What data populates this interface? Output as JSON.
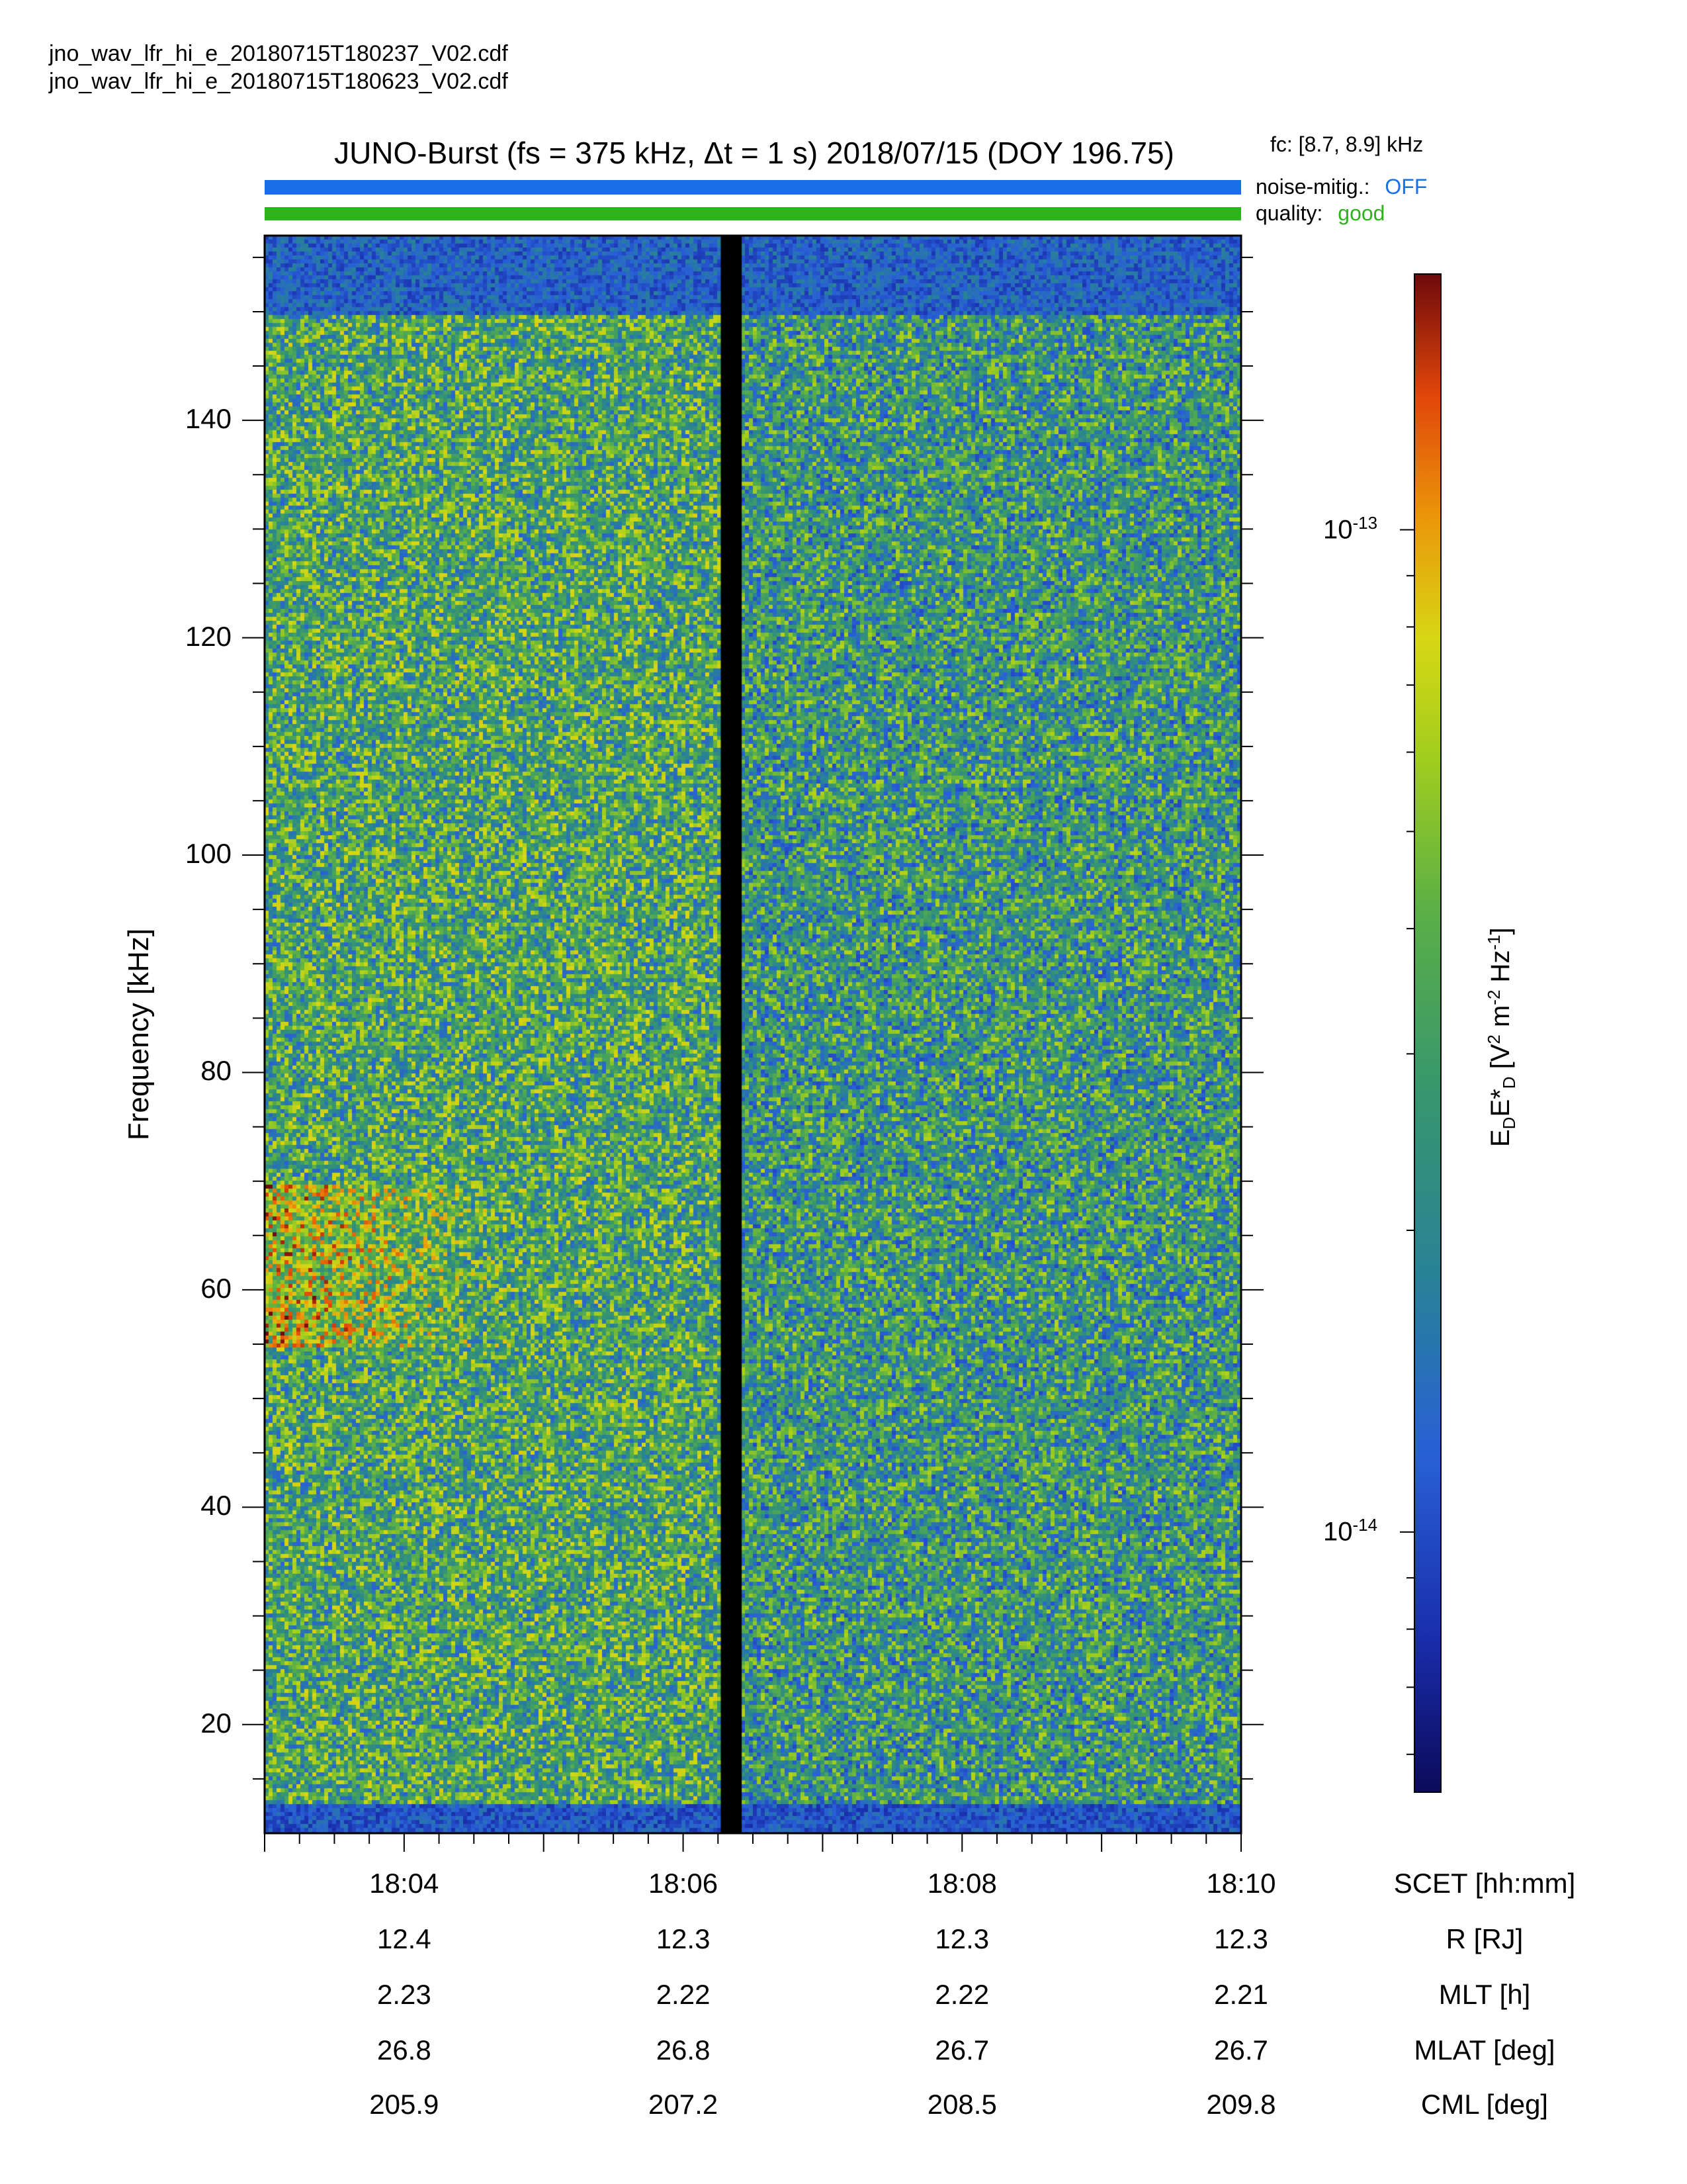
{
  "files": [
    "jno_wav_lfr_hi_e_20180715T180237_V02.cdf",
    "jno_wav_lfr_hi_e_20180715T180623_V02.cdf"
  ],
  "header": {
    "fc_label": "fc: [8.7, 8.9] kHz",
    "noise_label": "noise-mitig.:",
    "noise_value": "OFF",
    "quality_label": "quality:",
    "quality_value": "good"
  },
  "colors": {
    "noise_bar": "#1a6ee8",
    "quality_bar": "#2db31c",
    "noise_value": "#1a6ee8",
    "quality_value": "#2db31c"
  },
  "chart_data": {
    "type": "heatmap",
    "title": "JUNO-Burst (fs = 375 kHz, Δt = 1 s)  2018/07/15 (DOY 196.75)",
    "ylabel": "Frequency [kHz]",
    "ylim": [
      10,
      157
    ],
    "yticks": [
      20,
      40,
      60,
      80,
      100,
      120,
      140
    ],
    "xticks_minutes": [
      4,
      6,
      8,
      10
    ],
    "xlim_minutes": [
      3,
      10
    ],
    "data_gap_minutes": [
      6.27,
      6.42
    ],
    "colorbar": {
      "label": "EDE*D [V2 m-2 Hz-1]",
      "scale": "log",
      "range": [
        5.5e-15,
        1.8e-13
      ],
      "ticks": [
        {
          "value": 1e-13,
          "label": "10-13"
        },
        {
          "value": 1e-14,
          "label": "10-14"
        }
      ]
    },
    "features": [
      {
        "name": "enhanced emission band",
        "freq_range_khz": [
          55,
          70
        ],
        "time_range_minutes": [
          3,
          4.8
        ]
      },
      {
        "name": "low-frequency noise floor",
        "freq_range_khz": [
          10,
          13
        ]
      },
      {
        "name": "high-frequency cutoff",
        "freq_range_khz": [
          150,
          157
        ]
      }
    ],
    "ephemeris": {
      "row_labels": [
        "SCET [hh:mm]",
        "R [RJ]",
        "MLT [h]",
        "MLAT [deg]",
        "CML [deg]"
      ],
      "scet": [
        "18:04",
        "18:06",
        "18:08",
        "18:10"
      ],
      "R": [
        "12.4",
        "12.3",
        "12.3",
        "12.3"
      ],
      "MLT": [
        "2.23",
        "2.22",
        "2.22",
        "2.21"
      ],
      "MLAT": [
        "26.8",
        "26.8",
        "26.7",
        "26.7"
      ],
      "CML": [
        "205.9",
        "207.2",
        "208.5",
        "209.8"
      ]
    }
  }
}
